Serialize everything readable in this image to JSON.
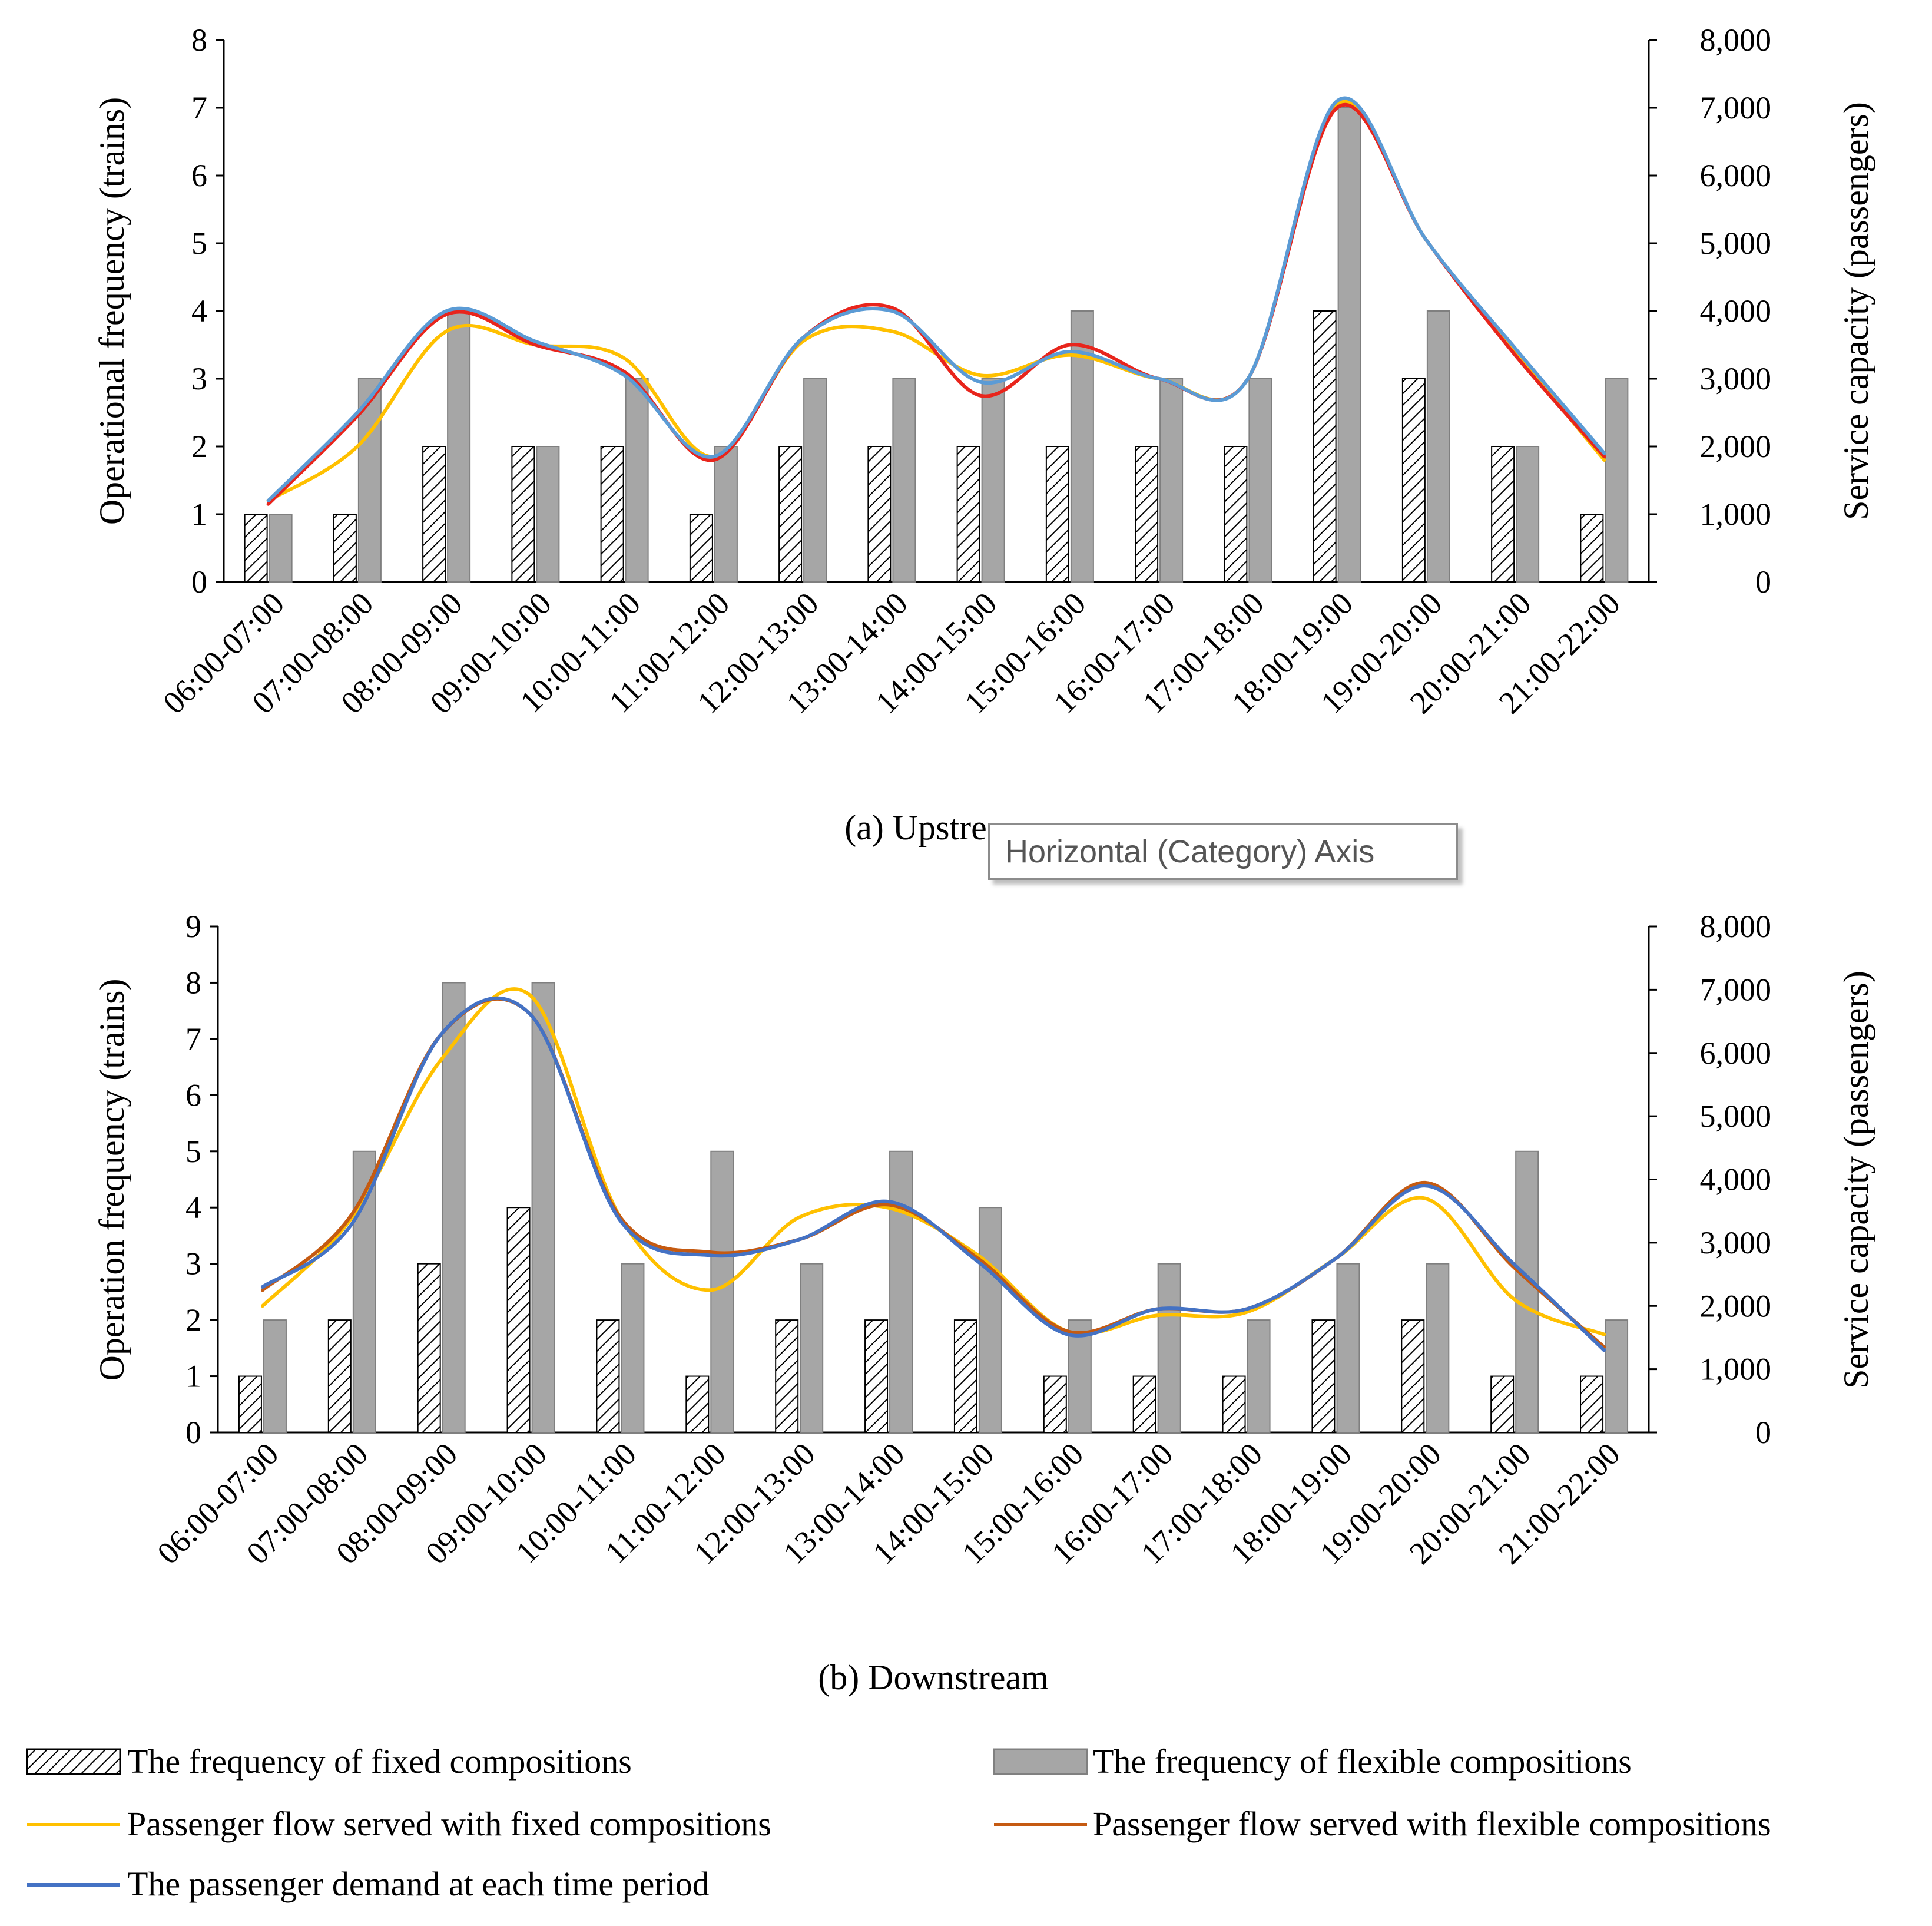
{
  "colors": {
    "fixed_bar": "#ffffff",
    "flex_bar": "#a6a6a6",
    "fixed_line": "#ffc000",
    "flex_line": "#c55a11",
    "flex_line_up": "#e8251c",
    "demand_line": "#4472c4",
    "demand_line_up": "#5b9bd5"
  },
  "tooltip": {
    "text": "Horizontal (Category) Axis"
  },
  "legend": {
    "fixed_freq": "The frequency of fixed compositions",
    "flex_freq": "The frequency of flexible compositions",
    "fixed_flow": "Passenger flow served with fixed compositions",
    "flex_flow": "Passenger flow served with flexible compositions",
    "demand": "The passenger demand at each time period"
  },
  "chart_data": [
    {
      "id": "upstream",
      "type": "bar",
      "caption": "(a) Upstream",
      "caption_visible": "(a) Upstre",
      "ylabel_left": "Operational frequency (trains)",
      "ylabel_right": "Service capacity (passengers)",
      "ylim_left": [
        0,
        8
      ],
      "left_ticks": [
        "0",
        "1",
        "2",
        "3",
        "4",
        "5",
        "6",
        "7",
        "8"
      ],
      "ylim_right": [
        0,
        8000
      ],
      "right_ticks": [
        "0",
        "1,000",
        "2,000",
        "3,000",
        "4,000",
        "5,000",
        "6,000",
        "7,000",
        "8,000"
      ],
      "categories": [
        "06:00-07:00",
        "07:00-08:00",
        "08:00-09:00",
        "09:00-10:00",
        "10:00-11:00",
        "11:00-12:00",
        "12:00-13:00",
        "13:00-14:00",
        "14:00-15:00",
        "15:00-16:00",
        "16:00-17:00",
        "17:00-18:00",
        "18:00-19:00",
        "19:00-20:00",
        "20:00-21:00",
        "21:00-22:00"
      ],
      "series": [
        {
          "name": "The frequency of fixed compositions",
          "kind": "bar",
          "axis": "left",
          "values": [
            1,
            1,
            2,
            2,
            2,
            1,
            2,
            2,
            2,
            2,
            2,
            2,
            4,
            3,
            2,
            1
          ]
        },
        {
          "name": "The frequency of flexible compositions",
          "kind": "bar",
          "axis": "left",
          "values": [
            1,
            3,
            4,
            2,
            3,
            2,
            3,
            3,
            3,
            4,
            3,
            3,
            7,
            4,
            2,
            3
          ]
        },
        {
          "name": "Passenger flow served with fixed compositions",
          "kind": "line",
          "axis": "right",
          "values": [
            1200,
            2000,
            3700,
            3500,
            3300,
            1850,
            3550,
            3700,
            3050,
            3350,
            3000,
            3000,
            7050,
            5050,
            3400,
            1800
          ]
        },
        {
          "name": "Passenger flow served with flexible compositions",
          "kind": "line",
          "axis": "right",
          "values": [
            1150,
            2450,
            3950,
            3500,
            3100,
            1800,
            3600,
            4050,
            2750,
            3500,
            3000,
            3000,
            7000,
            5050,
            3350,
            1850
          ]
        },
        {
          "name": "The passenger demand at each time period",
          "kind": "line",
          "axis": "right",
          "values": [
            1200,
            2500,
            4000,
            3550,
            3050,
            1850,
            3600,
            4000,
            2950,
            3400,
            3000,
            3000,
            7100,
            5050,
            3450,
            1900
          ]
        }
      ]
    },
    {
      "id": "downstream",
      "type": "bar",
      "caption": "(b) Downstream",
      "ylabel_left": "Operation frequency (trains)",
      "ylabel_right": "Service capacity (passengers)",
      "ylim_left": [
        0,
        9
      ],
      "left_ticks": [
        "0",
        "1",
        "2",
        "3",
        "4",
        "5",
        "6",
        "7",
        "8",
        "9"
      ],
      "ylim_right": [
        0,
        8000
      ],
      "right_ticks": [
        "0",
        "1,000",
        "2,000",
        "3,000",
        "4,000",
        "5,000",
        "6,000",
        "7,000",
        "8,000"
      ],
      "categories": [
        "06:00-07:00",
        "07:00-08:00",
        "08:00-09:00",
        "09:00-10:00",
        "10:00-11:00",
        "11:00-12:00",
        "12:00-13:00",
        "13:00-14:00",
        "14:00-15:00",
        "15:00-16:00",
        "16:00-17:00",
        "17:00-18:00",
        "18:00-19:00",
        "19:00-20:00",
        "20:00-21:00",
        "21:00-22:00"
      ],
      "series": [
        {
          "name": "The frequency of fixed compositions",
          "kind": "bar",
          "axis": "left",
          "values": [
            1,
            2,
            3,
            4,
            2,
            1,
            2,
            2,
            2,
            1,
            1,
            1,
            2,
            2,
            1,
            1
          ]
        },
        {
          "name": "The frequency of flexible compositions",
          "kind": "bar",
          "axis": "left",
          "values": [
            2,
            5,
            8,
            8,
            3,
            5,
            3,
            5,
            4,
            2,
            3,
            2,
            3,
            3,
            5,
            2
          ]
        },
        {
          "name": "Passenger flow served with fixed compositions",
          "kind": "line",
          "axis": "right",
          "values": [
            2000,
            3400,
            5900,
            6900,
            3400,
            2250,
            3400,
            3550,
            2800,
            1600,
            1850,
            1900,
            2750,
            3700,
            2100,
            1550
          ]
        },
        {
          "name": "Passenger flow served with flexible compositions",
          "kind": "line",
          "axis": "right",
          "values": [
            2250,
            3450,
            6300,
            6600,
            3400,
            2850,
            3050,
            3600,
            2750,
            1600,
            1950,
            1950,
            2750,
            3950,
            2600,
            1350
          ]
        },
        {
          "name": "The passenger demand at each time period",
          "kind": "line",
          "axis": "right",
          "values": [
            2300,
            3300,
            6300,
            6600,
            3350,
            2800,
            3050,
            3650,
            2700,
            1550,
            1950,
            1950,
            2750,
            3900,
            2650,
            1300
          ]
        }
      ]
    }
  ]
}
